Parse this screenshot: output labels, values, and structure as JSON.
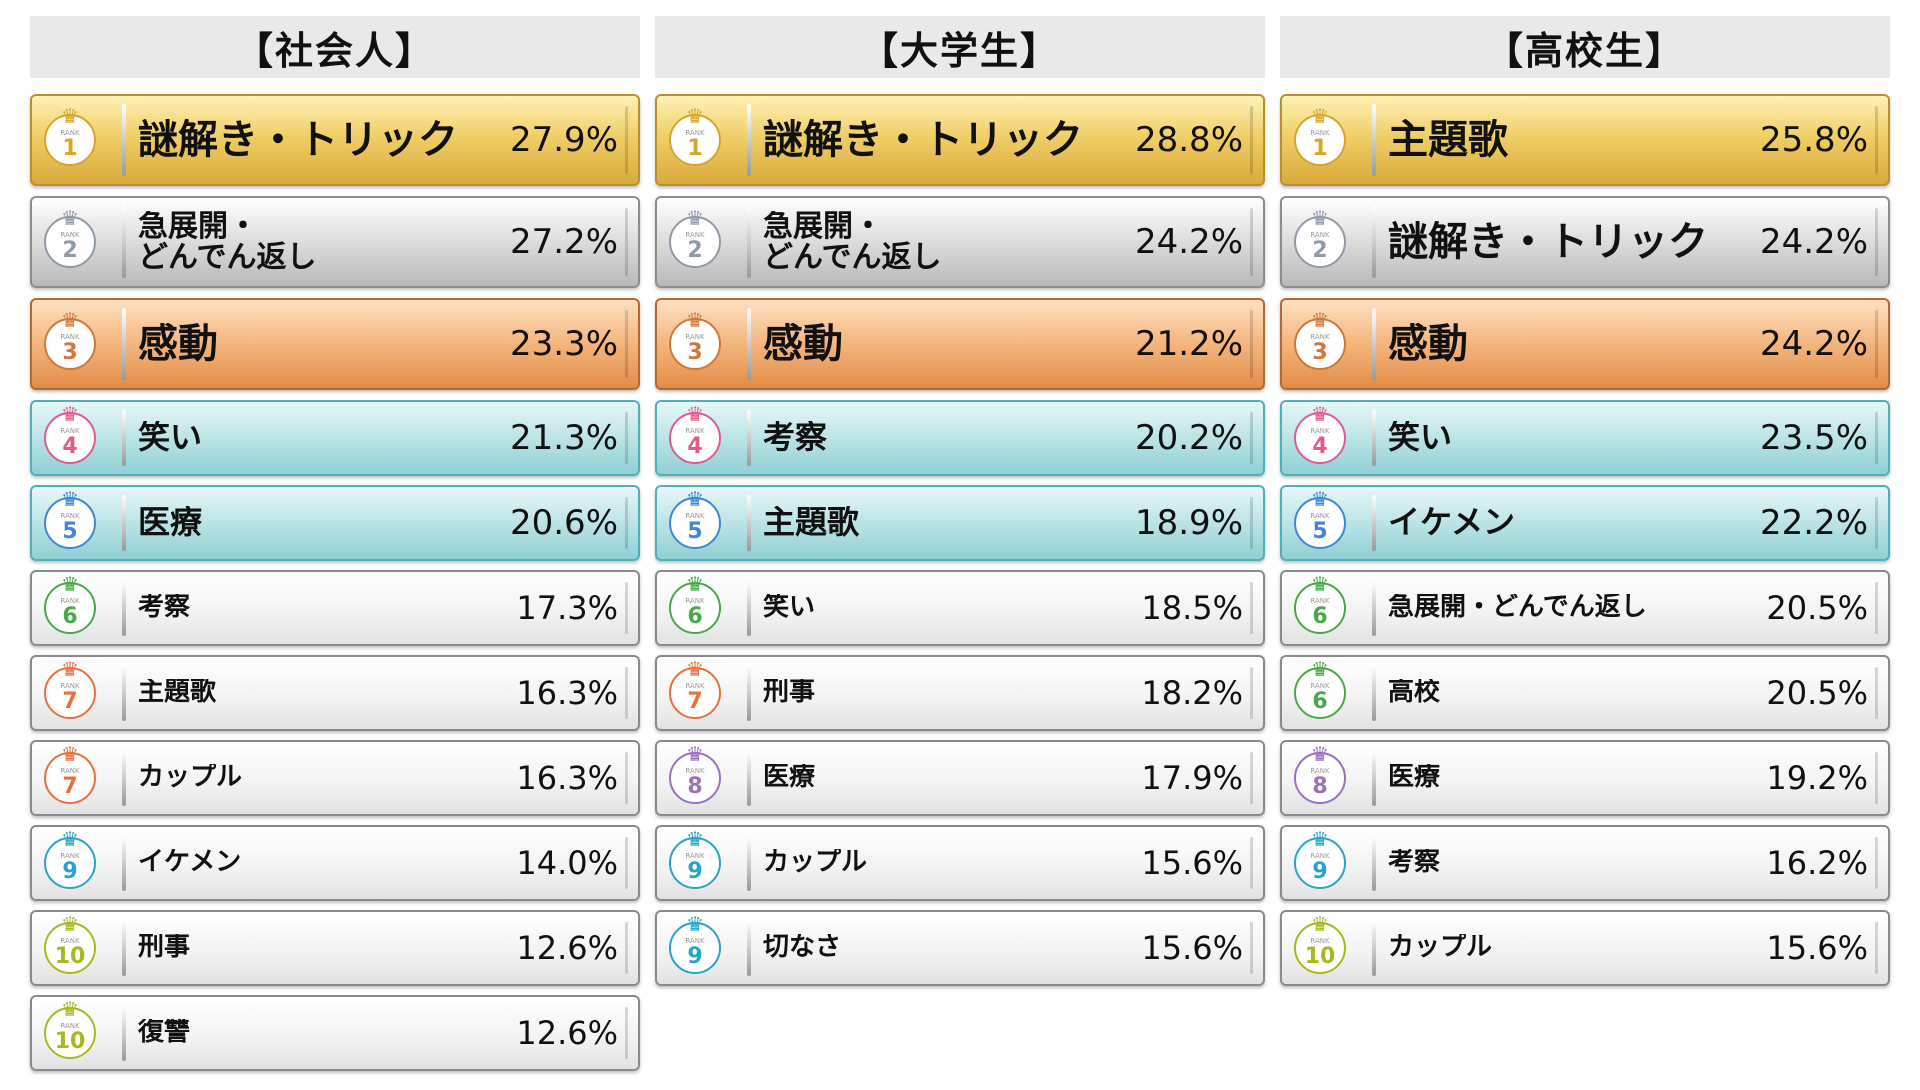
{
  "colors": {
    "rank1": "#d6a62a",
    "rank2": "#8e9aa8",
    "rank3": "#d0773a",
    "rank4": "#e05a8c",
    "rank5": "#3f86d6",
    "rank6": "#4aa84a",
    "rank7": "#e8703c",
    "rank8": "#9b6fc1",
    "rank9": "#2aa3c9",
    "rank10": "#a8b81e"
  },
  "rank_word": "RANK",
  "columns": [
    {
      "title": "【社会人】",
      "rows": [
        {
          "rank": "1",
          "label": "謎解き・トリック",
          "pct": "27.9%",
          "tier": "gold",
          "size": "big"
        },
        {
          "rank": "2",
          "label": "急展開・\nどんでん返し",
          "pct": "27.2%",
          "tier": "silver",
          "size": "big",
          "two_line": true
        },
        {
          "rank": "3",
          "label": "感動",
          "pct": "23.3%",
          "tier": "bronze",
          "size": "big"
        },
        {
          "rank": "4",
          "label": "笑い",
          "pct": "21.3%",
          "tier": "teal",
          "size": "mid"
        },
        {
          "rank": "5",
          "label": "医療",
          "pct": "20.6%",
          "tier": "teal",
          "size": "mid"
        },
        {
          "rank": "6",
          "label": "考察",
          "pct": "17.3%",
          "tier": "plain",
          "size": "small"
        },
        {
          "rank": "7",
          "label": "主題歌",
          "pct": "16.3%",
          "tier": "plain",
          "size": "small"
        },
        {
          "rank": "7",
          "label": "カップル",
          "pct": "16.3%",
          "tier": "plain",
          "size": "small"
        },
        {
          "rank": "9",
          "label": "イケメン",
          "pct": "14.0%",
          "tier": "plain",
          "size": "small"
        },
        {
          "rank": "10",
          "label": "刑事",
          "pct": "12.6%",
          "tier": "plain",
          "size": "small"
        },
        {
          "rank": "10",
          "label": "復讐",
          "pct": "12.6%",
          "tier": "plain",
          "size": "small"
        }
      ]
    },
    {
      "title": "【大学生】",
      "rows": [
        {
          "rank": "1",
          "label": "謎解き・トリック",
          "pct": "28.8%",
          "tier": "gold",
          "size": "big"
        },
        {
          "rank": "2",
          "label": "急展開・\nどんでん返し",
          "pct": "24.2%",
          "tier": "silver",
          "size": "big",
          "two_line": true
        },
        {
          "rank": "3",
          "label": "感動",
          "pct": "21.2%",
          "tier": "bronze",
          "size": "big"
        },
        {
          "rank": "4",
          "label": "考察",
          "pct": "20.2%",
          "tier": "teal",
          "size": "mid"
        },
        {
          "rank": "5",
          "label": "主題歌",
          "pct": "18.9%",
          "tier": "teal",
          "size": "mid"
        },
        {
          "rank": "6",
          "label": "笑い",
          "pct": "18.5%",
          "tier": "plain",
          "size": "small"
        },
        {
          "rank": "7",
          "label": "刑事",
          "pct": "18.2%",
          "tier": "plain",
          "size": "small"
        },
        {
          "rank": "8",
          "label": "医療",
          "pct": "17.9%",
          "tier": "plain",
          "size": "small"
        },
        {
          "rank": "9",
          "label": "カップル",
          "pct": "15.6%",
          "tier": "plain",
          "size": "small"
        },
        {
          "rank": "9",
          "label": "切なさ",
          "pct": "15.6%",
          "tier": "plain",
          "size": "small"
        }
      ]
    },
    {
      "title": "【高校生】",
      "rows": [
        {
          "rank": "1",
          "label": "主題歌",
          "pct": "25.8%",
          "tier": "gold",
          "size": "big"
        },
        {
          "rank": "2",
          "label": "謎解き・トリック",
          "pct": "24.2%",
          "tier": "silver",
          "size": "big"
        },
        {
          "rank": "3",
          "label": "感動",
          "pct": "24.2%",
          "tier": "bronze",
          "size": "big"
        },
        {
          "rank": "4",
          "label": "笑い",
          "pct": "23.5%",
          "tier": "teal",
          "size": "mid"
        },
        {
          "rank": "5",
          "label": "イケメン",
          "pct": "22.2%",
          "tier": "teal",
          "size": "mid"
        },
        {
          "rank": "6",
          "label": "急展開・どんでん返し",
          "pct": "20.5%",
          "tier": "plain",
          "size": "small"
        },
        {
          "rank": "6",
          "label": "高校",
          "pct": "20.5%",
          "tier": "plain",
          "size": "small"
        },
        {
          "rank": "8",
          "label": "医療",
          "pct": "19.2%",
          "tier": "plain",
          "size": "small"
        },
        {
          "rank": "9",
          "label": "考察",
          "pct": "16.2%",
          "tier": "plain",
          "size": "small"
        },
        {
          "rank": "10",
          "label": "カップル",
          "pct": "15.6%",
          "tier": "plain",
          "size": "small"
        }
      ]
    }
  ]
}
